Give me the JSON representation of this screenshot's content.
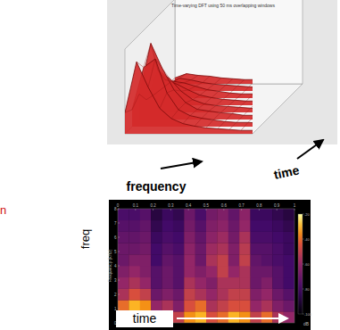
{
  "chart_data": [
    {
      "type": "surface",
      "title": "Time-varying DFT using 50 ms overlapping windows",
      "xlabel": "frequency",
      "ylabel": "time",
      "zlim": [
        0,
        1
      ],
      "tick_labels": false,
      "color": "#d42a2a",
      "series": [
        {
          "values": [
            0.25,
            0.85,
            0.55,
            0.3,
            0.18,
            0.12,
            0.09,
            0.07,
            0.06,
            0.05,
            0.04,
            0.04
          ]
        },
        {
          "values": [
            0.2,
            0.7,
            0.8,
            0.4,
            0.2,
            0.13,
            0.1,
            0.08,
            0.06,
            0.05,
            0.05,
            0.04
          ]
        },
        {
          "values": [
            0.3,
            0.9,
            0.6,
            0.35,
            0.2,
            0.12,
            0.1,
            0.08,
            0.07,
            0.05,
            0.05,
            0.04
          ]
        },
        {
          "values": [
            0.15,
            0.5,
            0.4,
            0.25,
            0.15,
            0.1,
            0.08,
            0.07,
            0.06,
            0.05,
            0.04,
            0.04
          ]
        },
        {
          "values": [
            0.12,
            0.3,
            0.25,
            0.18,
            0.12,
            0.09,
            0.07,
            0.06,
            0.05,
            0.05,
            0.04,
            0.04
          ]
        },
        {
          "values": [
            0.1,
            0.2,
            0.18,
            0.14,
            0.1,
            0.08,
            0.06,
            0.05,
            0.05,
            0.04,
            0.04,
            0.03
          ]
        },
        {
          "values": [
            0.08,
            0.15,
            0.13,
            0.1,
            0.08,
            0.07,
            0.06,
            0.05,
            0.04,
            0.04,
            0.03,
            0.03
          ]
        },
        {
          "values": [
            0.07,
            0.12,
            0.1,
            0.09,
            0.07,
            0.06,
            0.05,
            0.05,
            0.04,
            0.04,
            0.03,
            0.03
          ]
        }
      ]
    },
    {
      "type": "heatmap",
      "xlabel": "time",
      "ylabel": "freq",
      "y_axis_title": "Frequency (kHz)",
      "xlim": [
        0,
        1
      ],
      "xticks": [
        0,
        0.1,
        0.2,
        0.3,
        0.4,
        0.5,
        0.6,
        0.7,
        0.8,
        0.9,
        1
      ],
      "ylim": [
        0,
        8
      ],
      "yticks": [
        0,
        1,
        2,
        3,
        4,
        5,
        6,
        7,
        8
      ],
      "color_range": [
        -100,
        -20
      ],
      "color_ticks": [
        -100,
        -80,
        -60,
        -40,
        -20
      ],
      "colorbar_label": "dB",
      "annotations": [
        "n"
      ],
      "cells": [
        [
          -30,
          -25,
          -28,
          -45,
          -40,
          -50,
          -35,
          -30,
          -45,
          -40,
          -30,
          -35,
          -50,
          -40,
          -55,
          -60
        ],
        [
          -40,
          -30,
          -35,
          -60,
          -55,
          -65,
          -45,
          -40,
          -55,
          -50,
          -45,
          -45,
          -60,
          -55,
          -65,
          -70
        ],
        [
          -55,
          -45,
          -50,
          -70,
          -65,
          -70,
          -50,
          -55,
          -60,
          -55,
          -50,
          -50,
          -65,
          -60,
          -70,
          -75
        ],
        [
          -60,
          -55,
          -60,
          -75,
          -70,
          -75,
          -55,
          -60,
          -65,
          -55,
          -55,
          -55,
          -70,
          -65,
          -75,
          -80
        ],
        [
          -65,
          -60,
          -65,
          -75,
          -70,
          -75,
          -60,
          -65,
          -60,
          -50,
          -60,
          -55,
          -70,
          -70,
          -75,
          -80
        ],
        [
          -70,
          -65,
          -65,
          -80,
          -72,
          -75,
          -60,
          -70,
          -55,
          -50,
          -65,
          -50,
          -72,
          -75,
          -78,
          -80
        ],
        [
          -70,
          -70,
          -68,
          -80,
          -75,
          -78,
          -62,
          -70,
          -58,
          -55,
          -65,
          -52,
          -75,
          -75,
          -78,
          -82
        ],
        [
          -72,
          -72,
          -70,
          -82,
          -78,
          -80,
          -65,
          -72,
          -62,
          -58,
          -68,
          -55,
          -78,
          -78,
          -80,
          -82
        ],
        [
          -75,
          -75,
          -72,
          -85,
          -80,
          -82,
          -68,
          -75,
          -65,
          -62,
          -70,
          -60,
          -80,
          -80,
          -82,
          -85
        ],
        [
          -78,
          -78,
          -75,
          -88,
          -82,
          -85,
          -70,
          -78,
          -68,
          -65,
          -72,
          -62,
          -82,
          -82,
          -85,
          -88
        ]
      ]
    }
  ]
}
